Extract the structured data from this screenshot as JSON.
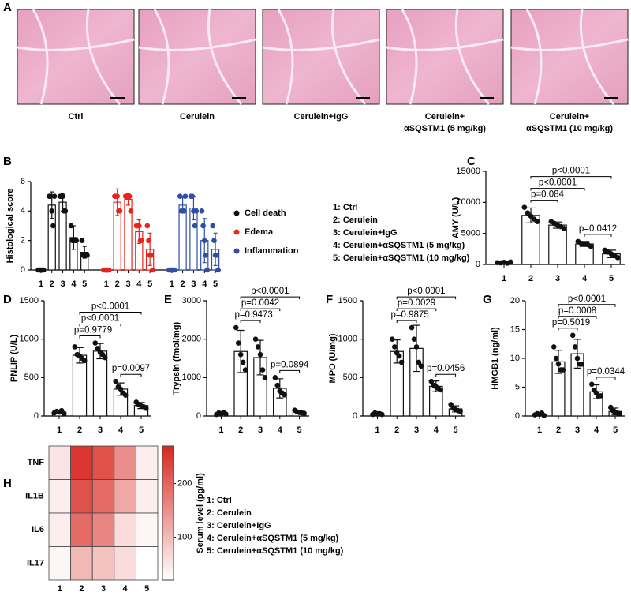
{
  "images": {
    "panel": "A",
    "items": [
      {
        "label_lines": [
          "Ctrl"
        ]
      },
      {
        "label_lines": [
          "Cerulein"
        ]
      },
      {
        "label_lines": [
          "Cerulein+IgG"
        ]
      },
      {
        "label_lines": [
          "Cerulein+",
          "αSQSTM1 (5 mg/kg)"
        ]
      },
      {
        "label_lines": [
          "Cerulein+",
          "αSQSTM1 (10 mg/kg)"
        ]
      }
    ]
  },
  "chart_data": [
    {
      "type": "bar",
      "panel": "B",
      "ylabel": "Histological score",
      "categories": [
        "1",
        "2",
        "3",
        "4",
        "5"
      ],
      "ylim": [
        0,
        6
      ],
      "yticks": [
        0,
        2,
        4,
        6
      ],
      "series": [
        {
          "name": "Cell death",
          "color": "#111111",
          "values": [
            0,
            4.4,
            4.6,
            2.2,
            1.2
          ],
          "errors": [
            0,
            0.9,
            0.6,
            0.8,
            0.4
          ],
          "points": [
            [
              0,
              0,
              0,
              0,
              0
            ],
            [
              5,
              5,
              4,
              3,
              5
            ],
            [
              5,
              5,
              5,
              4,
              4
            ],
            [
              3,
              2,
              2,
              2,
              2
            ],
            [
              2,
              1,
              1,
              1,
              1
            ]
          ]
        },
        {
          "name": "Edema",
          "color": "#e8241c",
          "values": [
            0,
            4.6,
            4.8,
            2.6,
            1.4
          ],
          "errors": [
            0,
            0.9,
            0.4,
            0.8,
            1.1
          ],
          "points": [
            [
              0,
              0,
              0,
              0,
              0
            ],
            [
              5,
              5,
              5,
              4,
              4
            ],
            [
              5,
              5,
              5,
              5,
              4
            ],
            [
              3,
              3,
              3,
              2,
              2
            ],
            [
              3,
              2,
              1,
              1,
              0
            ]
          ]
        },
        {
          "name": "Inflammation",
          "color": "#2e4fa3",
          "values": [
            0,
            4.4,
            4.2,
            2,
            1.4
          ],
          "errors": [
            0,
            0.5,
            0.8,
            1.5,
            1.1
          ],
          "points": [
            [
              0,
              0,
              0,
              0,
              0
            ],
            [
              5,
              4,
              4,
              4,
              5
            ],
            [
              5,
              5,
              4,
              3,
              4
            ],
            [
              4,
              3,
              2,
              1,
              0
            ],
            [
              3,
              2,
              1,
              1,
              0
            ]
          ]
        }
      ],
      "key": [
        "1: Ctrl",
        "2: Cerulein",
        "3: Cerulein+IgG",
        "4: Cerulein+αSQSTM1 (5 mg/kg)",
        "5: Cerulein+αSQSTM1 (10 mg/kg)"
      ]
    },
    {
      "type": "bar",
      "panel": "C",
      "ylabel": "AMY (U/L)",
      "categories": [
        "1",
        "2",
        "3",
        "4",
        "5"
      ],
      "ylim": [
        0,
        15000
      ],
      "yticks": [
        0,
        5000,
        10000,
        15000
      ],
      "color": "#111111",
      "values": [
        300,
        7900,
        6340,
        3300,
        1700
      ],
      "errors": [
        150,
        1200,
        500,
        400,
        600
      ],
      "points": [
        [
          300,
          250,
          350,
          200,
          400
        ],
        [
          9200,
          8300,
          7800,
          7300,
          6900
        ],
        [
          6900,
          6600,
          6300,
          6100,
          5800
        ],
        [
          3700,
          3400,
          3300,
          3200,
          2900
        ],
        [
          2300,
          2000,
          1700,
          1400,
          1100
        ]
      ],
      "comparisons": [
        {
          "from": "2",
          "to": "5",
          "label": "p<0.0001"
        },
        {
          "from": "2",
          "to": "4",
          "label": "p<0.0001"
        },
        {
          "from": "2",
          "to": "3",
          "label": "p=0.084"
        },
        {
          "from": "4",
          "to": "5",
          "label": "p=0.0412"
        }
      ]
    },
    {
      "type": "bar",
      "panel": "D",
      "ylabel": "PNLIP (U/L)",
      "categories": [
        "1",
        "2",
        "3",
        "4",
        "5"
      ],
      "ylim": [
        0,
        1500
      ],
      "yticks": [
        0,
        500,
        1000,
        1500
      ],
      "color": "#111111",
      "values": [
        50,
        790,
        844,
        350,
        136
      ],
      "errors": [
        20,
        100,
        100,
        80,
        40
      ],
      "points": [
        [
          40,
          60,
          50,
          70,
          30
        ],
        [
          900,
          800,
          780,
          750,
          720
        ],
        [
          950,
          880,
          830,
          800,
          760
        ],
        [
          450,
          380,
          350,
          300,
          270
        ],
        [
          180,
          150,
          130,
          120,
          100
        ]
      ],
      "comparisons": [
        {
          "from": "2",
          "to": "5",
          "label": "p<0.0001"
        },
        {
          "from": "2",
          "to": "4",
          "label": "p<0.0001"
        },
        {
          "from": "2",
          "to": "3",
          "label": "p=0.9779"
        },
        {
          "from": "4",
          "to": "5",
          "label": "p=0.0097"
        }
      ]
    },
    {
      "type": "bar",
      "panel": "E",
      "ylabel": "Trypsin (fmol/mg)",
      "categories": [
        "1",
        "2",
        "3",
        "4",
        "5"
      ],
      "ylim": [
        0,
        3000
      ],
      "yticks": [
        0,
        1000,
        2000,
        3000
      ],
      "color": "#111111",
      "values": [
        64,
        1680,
        1520,
        720,
        100
      ],
      "errors": [
        30,
        550,
        450,
        250,
        40
      ],
      "points": [
        [
          40,
          80,
          60,
          90,
          50
        ],
        [
          2300,
          1900,
          1600,
          1400,
          1200
        ],
        [
          2000,
          1800,
          1600,
          1200,
          1000
        ],
        [
          1000,
          800,
          650,
          600,
          550
        ],
        [
          150,
          110,
          90,
          80,
          70
        ]
      ],
      "comparisons": [
        {
          "from": "2",
          "to": "5",
          "label": "p<0.0001"
        },
        {
          "from": "2",
          "to": "4",
          "label": "p=0.0042"
        },
        {
          "from": "2",
          "to": "3",
          "label": "p=0.9473"
        },
        {
          "from": "4",
          "to": "5",
          "label": "p=0.0894"
        }
      ]
    },
    {
      "type": "bar",
      "panel": "F",
      "ylabel": "MPO (U/mg)",
      "categories": [
        "1",
        "2",
        "3",
        "4",
        "5"
      ],
      "ylim": [
        0,
        1500
      ],
      "yticks": [
        0,
        500,
        1000,
        1500
      ],
      "color": "#111111",
      "values": [
        28,
        840,
        880,
        386,
        92
      ],
      "errors": [
        15,
        150,
        300,
        70,
        40
      ],
      "points": [
        [
          20,
          40,
          30,
          30,
          20
        ],
        [
          1000,
          900,
          820,
          780,
          700
        ],
        [
          1150,
          1000,
          900,
          700,
          650
        ],
        [
          450,
          400,
          380,
          360,
          340
        ],
        [
          150,
          100,
          80,
          70,
          60
        ]
      ],
      "comparisons": [
        {
          "from": "2",
          "to": "5",
          "label": "p<0.0001"
        },
        {
          "from": "2",
          "to": "4",
          "label": "p=0.0029"
        },
        {
          "from": "2",
          "to": "3",
          "label": "p=0.9875"
        },
        {
          "from": "4",
          "to": "5",
          "label": "p=0.0456"
        }
      ]
    },
    {
      "type": "bar",
      "panel": "G",
      "ylabel": "HMGB1 (ng/ml)",
      "categories": [
        "1",
        "2",
        "3",
        "4",
        "5"
      ],
      "ylim": [
        0,
        20
      ],
      "yticks": [
        0,
        5,
        10,
        15,
        20
      ],
      "color": "#111111",
      "values": [
        0.3,
        9.4,
        10.8,
        4.2,
        0.78
      ],
      "errors": [
        0.2,
        2,
        2.5,
        1.2,
        0.6
      ],
      "points": [
        [
          0.2,
          0.4,
          0.3,
          0.5,
          0.1
        ],
        [
          12,
          10,
          9,
          8,
          8
        ],
        [
          14,
          12,
          10,
          9,
          9
        ],
        [
          5.5,
          4.5,
          4,
          3.5,
          3.5
        ],
        [
          1.5,
          0.9,
          0.6,
          0.5,
          0.4
        ]
      ],
      "comparisons": [
        {
          "from": "2",
          "to": "5",
          "label": "p<0.0001"
        },
        {
          "from": "2",
          "to": "4",
          "label": "p=0.0008"
        },
        {
          "from": "2",
          "to": "3",
          "label": "p=0.5019"
        },
        {
          "from": "4",
          "to": "5",
          "label": "p=0.0344"
        }
      ]
    },
    {
      "type": "heatmap",
      "panel": "H",
      "rows": [
        "TNF",
        "IL1B",
        "IL6",
        "IL17"
      ],
      "categories": [
        "1",
        "2",
        "3",
        "4",
        "5"
      ],
      "values": [
        [
          50,
          250,
          220,
          150,
          40
        ],
        [
          40,
          220,
          190,
          120,
          40
        ],
        [
          40,
          190,
          160,
          60,
          30
        ],
        [
          30,
          100,
          90,
          60,
          20
        ]
      ],
      "colorbar_label": "Serum level (pg/ml)",
      "clim": [
        20,
        270
      ],
      "cticks": [
        100,
        200
      ],
      "color": "#d7261e",
      "key": [
        "1: Ctrl",
        "2: Cerulein",
        "3: Cerulein+IgG",
        "4: Cerulein+αSQSTM1 (5 mg/kg)",
        "5: Cerulein+αSQSTM1 (10 mg/kg)"
      ]
    }
  ]
}
